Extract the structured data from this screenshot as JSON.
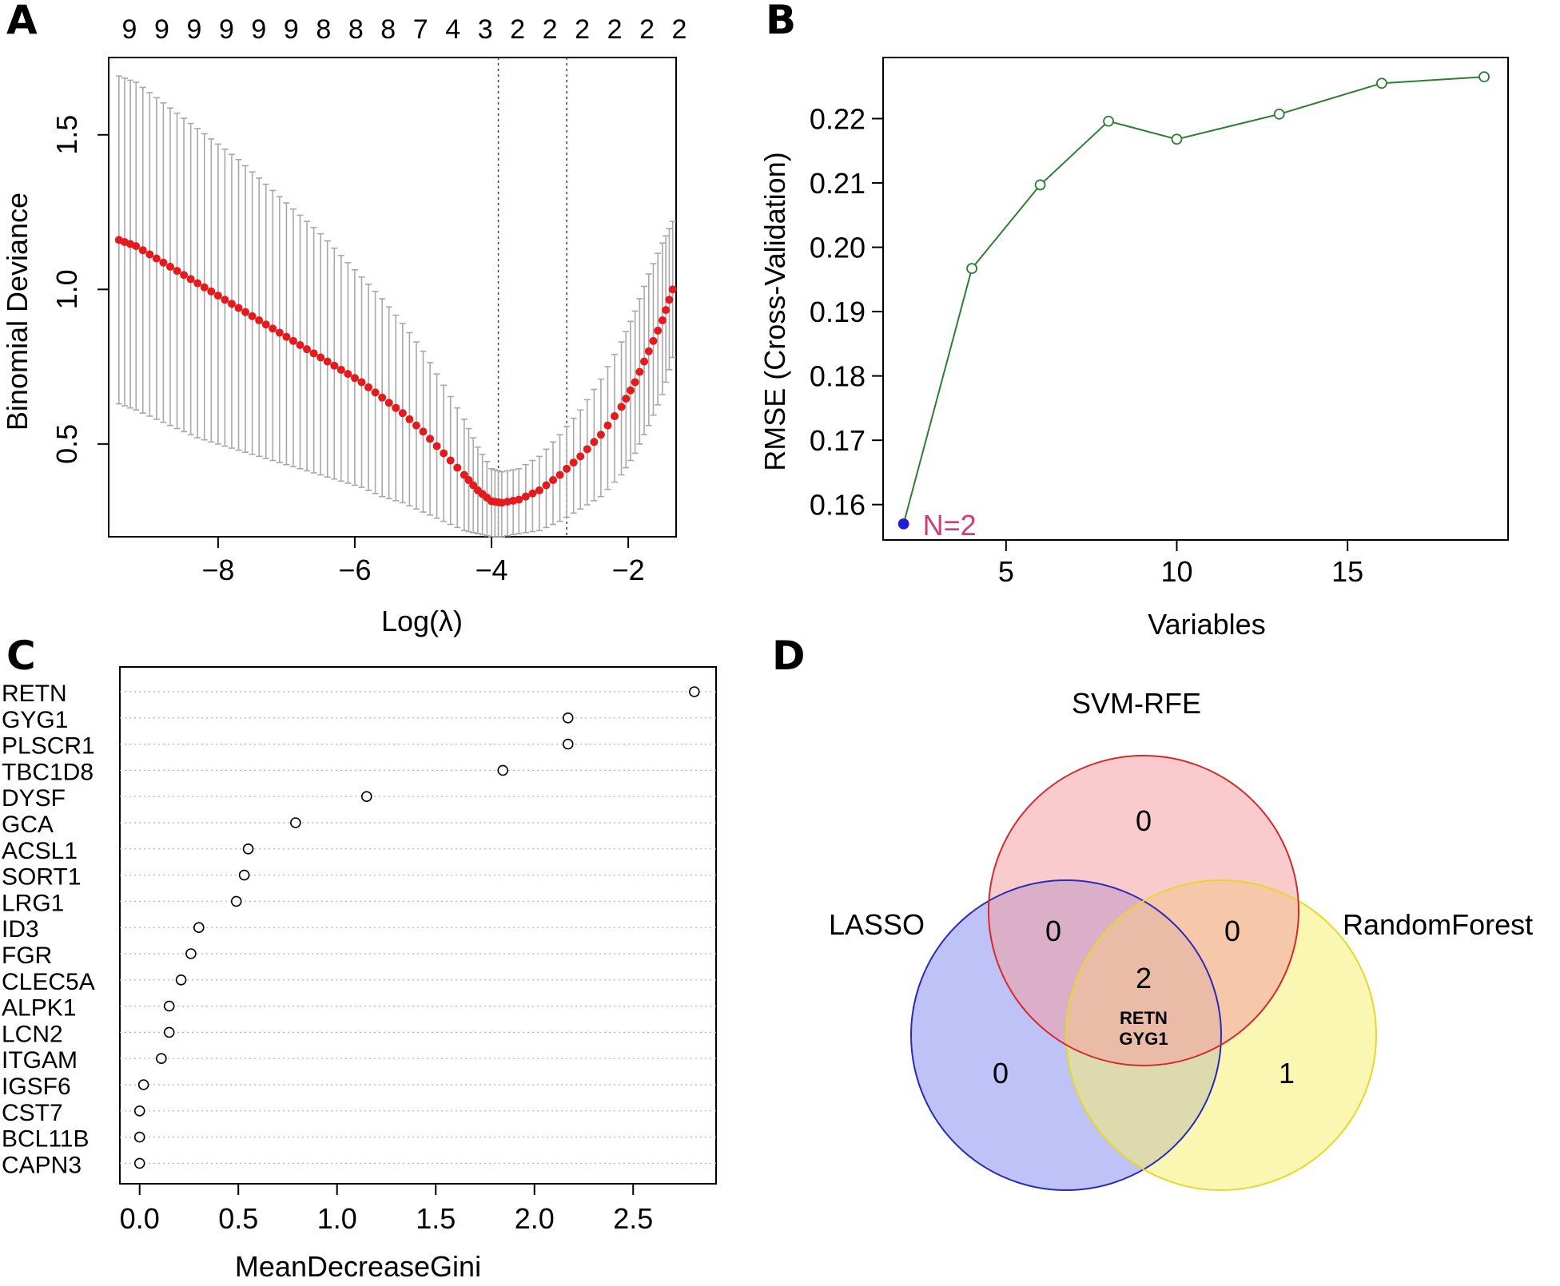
{
  "figure": {
    "panel_labels": [
      "A",
      "B",
      "C",
      "D"
    ]
  },
  "chart_data": [
    {
      "panel": "A",
      "type": "line",
      "xlabel": "Log(λ)",
      "ylabel": "Binomial Deviance",
      "xlim": [
        -9.6,
        -1.3
      ],
      "ylim": [
        0.2,
        1.75
      ],
      "xticks": [
        -8,
        -6,
        -4,
        -2
      ],
      "xtick_labels": [
        "−8",
        "−6",
        "−4",
        "−2"
      ],
      "yticks": [
        0.5,
        1.0,
        1.5
      ],
      "ytick_labels": [
        "0.5",
        "1.0",
        "1.5"
      ],
      "top_counts": [
        "9",
        "9",
        "9",
        "9",
        "9",
        "9",
        "8",
        "8",
        "8",
        "7",
        "4",
        "3",
        "2",
        "2",
        "2",
        "2",
        "2",
        "2"
      ],
      "lambda_min": -3.9,
      "lambda_1se": -2.9,
      "series": [
        {
          "color": "#e41a1c",
          "x": [
            -9.45,
            -9.2,
            -8.9,
            -8.6,
            -8.3,
            -8.0,
            -7.7,
            -7.4,
            -7.1,
            -6.8,
            -6.5,
            -6.2,
            -5.9,
            -5.6,
            -5.3,
            -5.0,
            -4.7,
            -4.4,
            -4.2,
            -4.0,
            -3.85,
            -3.6,
            -3.3,
            -3.0,
            -2.7,
            -2.4,
            -2.1,
            -1.9,
            -1.7,
            -1.5,
            -1.35
          ],
          "y": [
            1.16,
            1.14,
            1.1,
            1.06,
            1.02,
            0.98,
            0.94,
            0.9,
            0.86,
            0.82,
            0.78,
            0.74,
            0.7,
            0.65,
            0.6,
            0.54,
            0.47,
            0.4,
            0.35,
            0.315,
            0.31,
            0.32,
            0.35,
            0.4,
            0.46,
            0.53,
            0.62,
            0.7,
            0.8,
            0.9,
            1.0
          ],
          "lower": [
            0.63,
            0.61,
            0.58,
            0.55,
            0.52,
            0.5,
            0.48,
            0.46,
            0.44,
            0.42,
            0.4,
            0.38,
            0.36,
            0.33,
            0.31,
            0.28,
            0.25,
            0.22,
            0.21,
            0.2,
            0.2,
            0.21,
            0.22,
            0.25,
            0.29,
            0.33,
            0.4,
            0.47,
            0.56,
            0.66,
            0.78
          ],
          "upper": [
            1.69,
            1.67,
            1.62,
            1.57,
            1.52,
            1.47,
            1.42,
            1.36,
            1.3,
            1.24,
            1.18,
            1.11,
            1.04,
            0.97,
            0.89,
            0.8,
            0.69,
            0.58,
            0.49,
            0.42,
            0.41,
            0.42,
            0.46,
            0.53,
            0.61,
            0.71,
            0.83,
            0.93,
            1.05,
            1.15,
            1.22
          ]
        }
      ]
    },
    {
      "panel": "B",
      "type": "line",
      "xlabel": "Variables",
      "ylabel": "RMSE (Cross-Validation)",
      "xlim": [
        1.4,
        19.7
      ],
      "ylim": [
        0.1545,
        0.2295
      ],
      "xticks": [
        5,
        10,
        15
      ],
      "xtick_labels": [
        "5",
        "10",
        "15"
      ],
      "yticks": [
        0.16,
        0.17,
        0.18,
        0.19,
        0.2,
        0.21,
        0.22
      ],
      "ytick_labels": [
        "0.16",
        "0.17",
        "0.18",
        "0.19",
        "0.20",
        "0.21",
        "0.22"
      ],
      "series": [
        {
          "color": "#2e7d32",
          "x": [
            2,
            4,
            6,
            8,
            10,
            13,
            16,
            19
          ],
          "y": [
            0.157,
            0.1967,
            0.2097,
            0.2196,
            0.2168,
            0.2207,
            0.2255,
            0.2265
          ]
        }
      ],
      "highlight": {
        "x": 2,
        "y": 0.157,
        "color": "#1f1fd6",
        "label": "N=2",
        "label_color": "#d23c78"
      }
    },
    {
      "panel": "C",
      "type": "scatter",
      "xlabel": "MeanDecreaseGini",
      "xlim": [
        -0.1,
        2.92
      ],
      "xticks": [
        0.0,
        0.5,
        1.0,
        1.5,
        2.0,
        2.5
      ],
      "xtick_labels": [
        "0.0",
        "0.5",
        "1.0",
        "1.5",
        "2.0",
        "2.5"
      ],
      "categories": [
        "RETN",
        "GYG1",
        "PLSCR1",
        "TBC1D8",
        "DYSF",
        "GCA",
        "ACSL1",
        "SORT1",
        "LRG1",
        "ID3",
        "FGR",
        "CLEC5A",
        "ALPK1",
        "LCN2",
        "ITGAM",
        "IGSF6",
        "CST7",
        "BCL11B",
        "CAPN3"
      ],
      "values": [
        2.81,
        2.17,
        2.17,
        1.84,
        1.15,
        0.79,
        0.55,
        0.53,
        0.49,
        0.3,
        0.26,
        0.21,
        0.15,
        0.15,
        0.11,
        0.02,
        0.0,
        0.0,
        0.0
      ]
    },
    {
      "panel": "D",
      "type": "venn",
      "sets": [
        {
          "name": "SVM-RFE",
          "color": "#f4a0a3",
          "stroke": "#d42a2a"
        },
        {
          "name": "LASSO",
          "color": "#8b8ff0",
          "stroke": "#2a2ab8"
        },
        {
          "name": "RandomForest",
          "color": "#f5f073",
          "stroke": "#e6d82a"
        }
      ],
      "regions": {
        "svm_only": "0",
        "lasso_svm": "0",
        "svm_rf": "0",
        "all_three": "2",
        "lasso_only": "0",
        "rf_only": "1"
      },
      "shared_genes": [
        "RETN",
        "GYG1"
      ]
    }
  ]
}
